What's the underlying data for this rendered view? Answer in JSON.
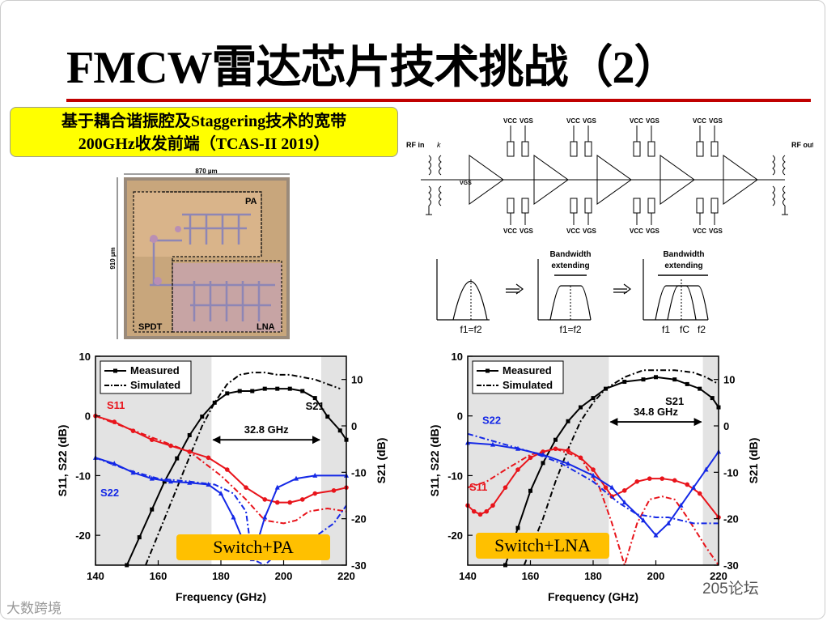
{
  "slide": {
    "title": "FMCW雷达芯片技术挑战（2）",
    "subtitle_line1": "基于耦合谐振腔及Staggering技术的宽带",
    "subtitle_line2": "200GHz收发前端（TCAS-II 2019）"
  },
  "chip": {
    "width_label": "870 µm",
    "height_label": "910 µm",
    "pa_label": "PA",
    "lna_label": "LNA",
    "spdt_label": "SPDT"
  },
  "schematic": {
    "rf_in": "RF in",
    "rf_out": "RF out",
    "vcc": "VCC",
    "vgs": "VGS",
    "k": "k",
    "vgs_side": "VGS"
  },
  "bandwidth_figure": {
    "label1": "Bandwidth",
    "label2": "extending",
    "f1_eq_f2": "f1=f2",
    "f1": "f1",
    "fc": "fC",
    "f2": "f2"
  },
  "colors": {
    "red": "#e8141b",
    "blue": "#1428e6",
    "accent": "#c00000",
    "badge": "#ffc000"
  },
  "chart_data": [
    {
      "type": "line",
      "title": "Switch+PA",
      "xlabel": "Frequency (GHz)",
      "ylabel_left": "S11, S22 (dB)",
      "ylabel_right": "S21 (dB)",
      "xlim": [
        140,
        220
      ],
      "ylim_left": [
        -25,
        10
      ],
      "ylim_right": [
        -30,
        15
      ],
      "x_ticks": [
        "140",
        "160",
        "180",
        "200",
        "220"
      ],
      "y_left_ticks": [
        "10",
        "0",
        "-10",
        "-20"
      ],
      "y_right_ticks": [
        "10",
        "0",
        "-10",
        "-20",
        "-30"
      ],
      "legend": [
        "Measured",
        "Simulated"
      ],
      "bandwidth_label": "32.8 GHz",
      "shaded_bands": [
        [
          140,
          177
        ],
        [
          212,
          220
        ]
      ],
      "curve_labels": {
        "s11": "S11",
        "s22": "S22",
        "s21": "S21"
      },
      "series": [
        {
          "name": "S21 Measured",
          "axis": "right",
          "x": [
            150,
            154,
            158,
            162,
            166,
            170,
            174,
            178,
            182,
            186,
            190,
            194,
            198,
            202,
            206,
            210,
            214,
            218,
            220
          ],
          "values": [
            -30,
            -24,
            -18,
            -12,
            -7,
            -2,
            2,
            5,
            7,
            7.5,
            7.5,
            8,
            8,
            8,
            7.5,
            6,
            2,
            -1,
            -3
          ]
        },
        {
          "name": "S21 Simulated",
          "axis": "right",
          "x": [
            156,
            162,
            168,
            174,
            178,
            182,
            186,
            190,
            194,
            198,
            202,
            206,
            210,
            214,
            218
          ],
          "values": [
            -30,
            -20,
            -10,
            0,
            5,
            9,
            11,
            11.5,
            11.5,
            11,
            11,
            10.5,
            10,
            9,
            8
          ]
        },
        {
          "name": "S11 Measured",
          "axis": "left",
          "x": [
            140,
            146,
            152,
            158,
            164,
            170,
            176,
            182,
            188,
            194,
            198,
            202,
            206,
            210,
            216,
            220
          ],
          "values": [
            0,
            -1,
            -2.5,
            -4,
            -5,
            -6,
            -7,
            -9,
            -12,
            -14,
            -14.5,
            -14.5,
            -14,
            -13,
            -12.5,
            -12
          ]
        },
        {
          "name": "S11 Simulated",
          "axis": "left",
          "x": [
            140,
            150,
            160,
            170,
            180,
            188,
            194,
            200,
            204,
            208,
            214,
            220
          ],
          "values": [
            0,
            -2,
            -4,
            -6,
            -10,
            -14,
            -17.5,
            -18,
            -17.5,
            -16,
            -15.5,
            -16
          ]
        },
        {
          "name": "S22 Measured",
          "axis": "left",
          "x": [
            140,
            146,
            152,
            158,
            164,
            170,
            176,
            180,
            184,
            188,
            190,
            194,
            198,
            204,
            210,
            220
          ],
          "values": [
            -7,
            -8,
            -9.5,
            -10.5,
            -11,
            -11.2,
            -11.5,
            -13,
            -17,
            -22,
            -24,
            -17,
            -12,
            -10.5,
            -10,
            -10
          ]
        },
        {
          "name": "S22 Simulated",
          "axis": "left",
          "x": [
            140,
            150,
            160,
            170,
            178,
            184,
            188,
            190,
            194,
            200,
            208,
            216,
            220
          ],
          "values": [
            -7,
            -9,
            -10.5,
            -11,
            -11.5,
            -13,
            -16,
            -24,
            -25,
            -22,
            -21,
            -18,
            -15
          ]
        }
      ]
    },
    {
      "type": "line",
      "title": "Switch+LNA",
      "xlabel": "Frequency (GHz)",
      "ylabel_left": "S11, S22 (dB)",
      "ylabel_right": "S21 (dB)",
      "xlim": [
        140,
        220
      ],
      "ylim_left": [
        -25,
        10
      ],
      "ylim_right": [
        -30,
        15
      ],
      "x_ticks": [
        "140",
        "160",
        "180",
        "200",
        "220"
      ],
      "y_left_ticks": [
        "10",
        "0",
        "-10",
        "-20"
      ],
      "y_right_ticks": [
        "10",
        "0",
        "-10",
        "-20",
        "-30"
      ],
      "legend": [
        "Measured",
        "Simulated"
      ],
      "bandwidth_label": "34.8 GHz",
      "shaded_bands": [
        [
          140,
          185
        ],
        [
          215,
          220
        ]
      ],
      "curve_labels": {
        "s11": "S11",
        "s22": "S22",
        "s21": "S21"
      },
      "series": [
        {
          "name": "S21 Measured",
          "axis": "right",
          "x": [
            152,
            156,
            160,
            164,
            168,
            172,
            176,
            180,
            184,
            190,
            196,
            200,
            206,
            210,
            214,
            218,
            220
          ],
          "values": [
            -30,
            -22,
            -14,
            -8,
            -3,
            1,
            4,
            6,
            8,
            9.5,
            10,
            10.5,
            10,
            9,
            8,
            6,
            4
          ]
        },
        {
          "name": "S21 Simulated",
          "axis": "right",
          "x": [
            158,
            164,
            168,
            172,
            176,
            180,
            184,
            190,
            196,
            200,
            206,
            212,
            216,
            220
          ],
          "values": [
            -30,
            -20,
            -12,
            -5,
            1,
            5,
            8,
            10.5,
            12,
            12,
            12,
            11.5,
            10.5,
            9
          ]
        },
        {
          "name": "S11 Measured",
          "axis": "left",
          "x": [
            140,
            142,
            144,
            146,
            148,
            152,
            156,
            160,
            164,
            168,
            172,
            176,
            180,
            184,
            186,
            190,
            194,
            198,
            202,
            206,
            210,
            214,
            220
          ],
          "values": [
            -15,
            -16,
            -16.5,
            -16,
            -15,
            -12,
            -9,
            -7,
            -6,
            -5.5,
            -5.8,
            -7,
            -9,
            -12,
            -13.5,
            -12.5,
            -11,
            -10.5,
            -10.5,
            -10.8,
            -11.5,
            -13,
            -17
          ]
        },
        {
          "name": "S11 Simulated",
          "axis": "left",
          "x": [
            140,
            146,
            152,
            160,
            168,
            176,
            182,
            186,
            190,
            194,
            198,
            202,
            206,
            210,
            216,
            220
          ],
          "values": [
            -12,
            -11,
            -9,
            -6.5,
            -5.5,
            -7,
            -12,
            -18,
            -25,
            -18,
            -14,
            -13.5,
            -14,
            -17,
            -22,
            -25
          ]
        },
        {
          "name": "S22 Measured",
          "axis": "left",
          "x": [
            140,
            148,
            156,
            164,
            172,
            180,
            186,
            190,
            196,
            200,
            204,
            208,
            212,
            216,
            220
          ],
          "values": [
            -4.5,
            -4.8,
            -5.5,
            -6.5,
            -8,
            -10,
            -12,
            -14.5,
            -17.5,
            -20,
            -18,
            -15,
            -12,
            -9,
            -6
          ]
        },
        {
          "name": "S22 Simulated",
          "axis": "left",
          "x": [
            140,
            150,
            160,
            170,
            180,
            188,
            194,
            200,
            204,
            208,
            212,
            216,
            220
          ],
          "values": [
            -3,
            -4.5,
            -6,
            -8,
            -11,
            -14.5,
            -16.5,
            -17,
            -17,
            -17.5,
            -18,
            -18,
            -18
          ]
        }
      ]
    }
  ],
  "watermarks": {
    "left": "大数跨境",
    "right": "205论坛"
  }
}
